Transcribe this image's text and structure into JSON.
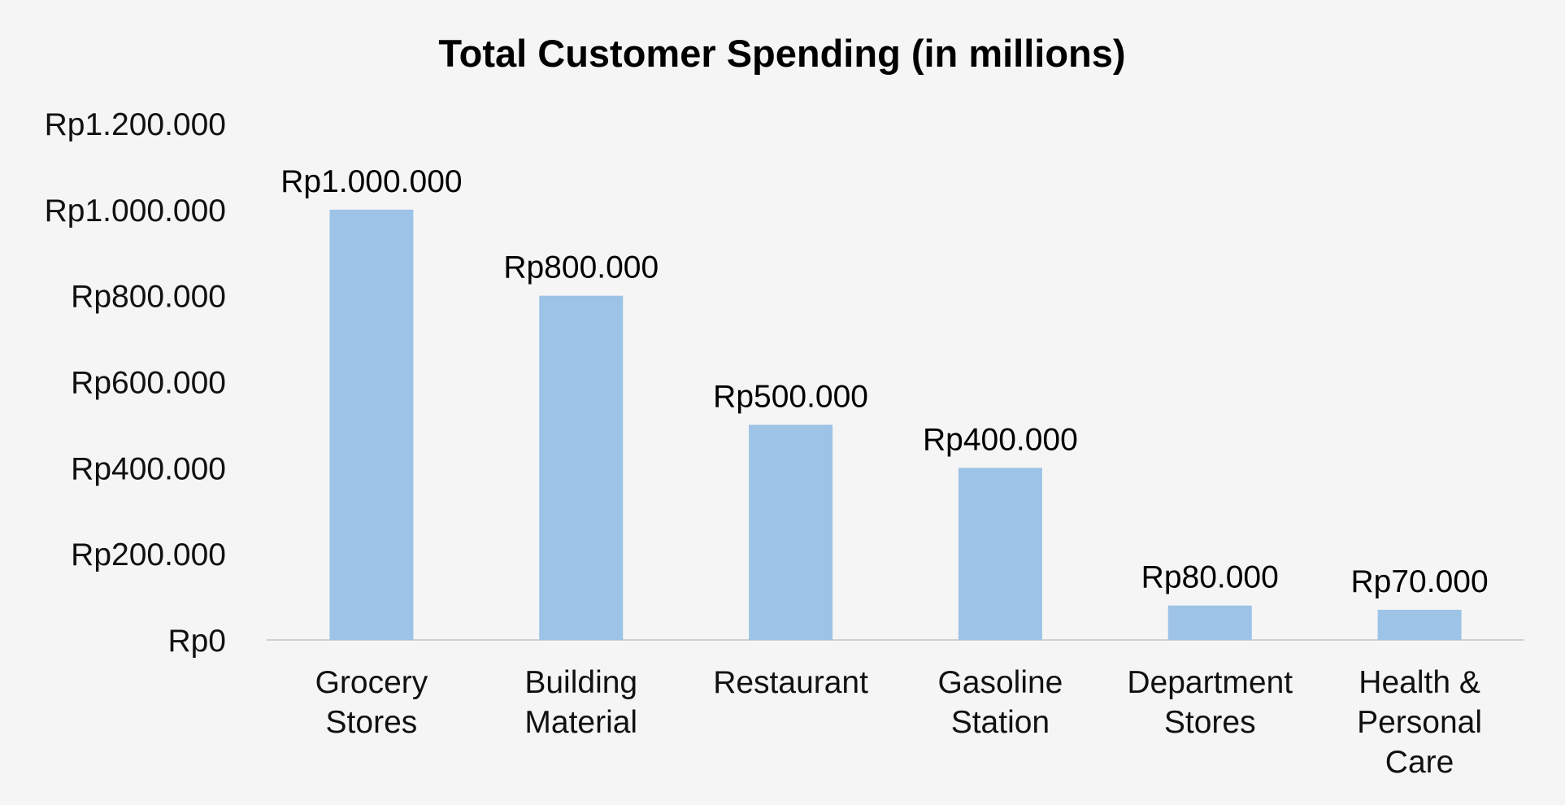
{
  "chart_data": {
    "type": "bar",
    "title": "Total Customer Spending (in millions)",
    "xlabel": "",
    "ylabel": "",
    "categories": [
      [
        "Grocery",
        "Stores"
      ],
      [
        "Building",
        "Material"
      ],
      [
        "Restaurant"
      ],
      [
        "Gasoline",
        "Station"
      ],
      [
        "Department",
        "Stores"
      ],
      [
        "Health &",
        "Personal",
        "Care"
      ]
    ],
    "values": [
      1000000,
      800000,
      500000,
      400000,
      80000,
      70000
    ],
    "data_labels": [
      "Rp1.000.000",
      "Rp800.000",
      "Rp500.000",
      "Rp400.000",
      "Rp80.000",
      "Rp70.000"
    ],
    "y_ticks": [
      0,
      200000,
      400000,
      600000,
      800000,
      1000000,
      1200000
    ],
    "y_tick_labels": [
      "Rp0",
      "Rp200.000",
      "Rp400.000",
      "Rp600.000",
      "Rp800.000",
      "Rp1.000.000",
      "Rp1.200.000"
    ],
    "ylim": [
      0,
      1200000
    ],
    "grid": false,
    "legend": "none",
    "colors": {
      "bar": "#9dc3e6",
      "axis": "#d0d0d0",
      "background": "#f5f5f5"
    }
  }
}
